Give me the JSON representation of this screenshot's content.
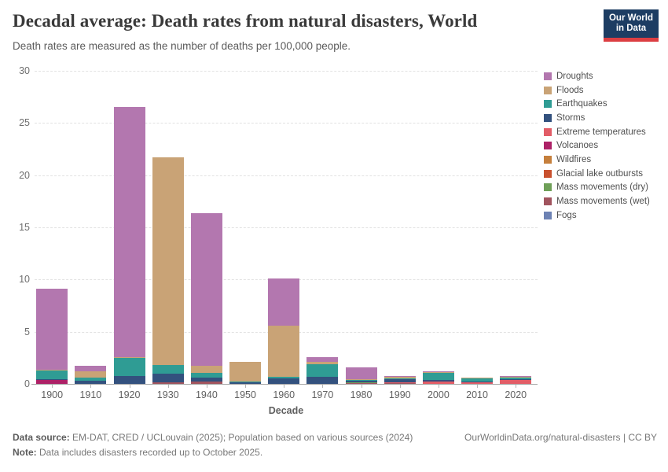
{
  "header": {
    "title": "Decadal average: Death rates from natural disasters, World",
    "subtitle": "Death rates are measured as the number of deaths per 100,000 people.",
    "logo": {
      "line1": "Our World",
      "line2": "in Data",
      "bg_color": "#1d3d63",
      "accent_color": "#dc3e42"
    }
  },
  "chart_data": {
    "type": "bar",
    "stacked": true,
    "title": "Decadal average: Death rates from natural disasters, World",
    "xlabel": "Decade",
    "ylabel": "",
    "ylim": [
      0,
      30
    ],
    "yticks": [
      0,
      5,
      10,
      15,
      20,
      25,
      30
    ],
    "grid": "dashed-horizontal",
    "legend_position": "right",
    "stacking_note": "bars stack bottom-to-top in reverse legend order",
    "categories": [
      "1900",
      "1910",
      "1920",
      "1930",
      "1940",
      "1950",
      "1960",
      "1970",
      "1980",
      "1990",
      "2000",
      "2010",
      "2020"
    ],
    "series": [
      {
        "name": "Droughts",
        "color": "#b377af",
        "values": [
          7.8,
          0.55,
          23.9,
          0,
          14.6,
          0,
          4.5,
          0.5,
          1.1,
          0.08,
          0.02,
          0,
          0.02
        ]
      },
      {
        "name": "Floods",
        "color": "#c9a376",
        "values": [
          0.05,
          0.55,
          0.05,
          19.9,
          0.68,
          1.9,
          4.9,
          0.25,
          0.05,
          0.15,
          0.06,
          0.05,
          0.07
        ]
      },
      {
        "name": "Earthquakes",
        "color": "#2f9c94",
        "values": [
          0.83,
          0.32,
          1.8,
          0.8,
          0.45,
          0.1,
          0.15,
          1.2,
          0.1,
          0.1,
          0.68,
          0.3,
          0.12
        ]
      },
      {
        "name": "Storms",
        "color": "#33517e",
        "values": [
          0.05,
          0.3,
          0.72,
          0.85,
          0.45,
          0.12,
          0.55,
          0.65,
          0.15,
          0.3,
          0.15,
          0.07,
          0.05
        ]
      },
      {
        "name": "Extreme temperatures",
        "color": "#e25d67",
        "values": [
          0,
          0,
          0,
          0,
          0,
          0,
          0,
          0,
          0,
          0.05,
          0.22,
          0.13,
          0.37
        ]
      },
      {
        "name": "Volcanoes",
        "color": "#ad2167",
        "values": [
          0.36,
          0,
          0,
          0,
          0,
          0,
          0,
          0,
          0,
          0,
          0,
          0,
          0
        ]
      },
      {
        "name": "Wildfires",
        "color": "#c57f3c",
        "values": [
          0,
          0,
          0,
          0,
          0,
          0,
          0,
          0,
          0,
          0,
          0,
          0,
          0
        ]
      },
      {
        "name": "Glacial lake outbursts",
        "color": "#c9512e",
        "values": [
          0,
          0,
          0,
          0,
          0,
          0,
          0,
          0,
          0,
          0,
          0,
          0,
          0
        ]
      },
      {
        "name": "Mass movements (dry)",
        "color": "#6fa058",
        "values": [
          0,
          0,
          0,
          0,
          0,
          0,
          0,
          0,
          0.05,
          0,
          0,
          0,
          0
        ]
      },
      {
        "name": "Mass movements (wet)",
        "color": "#a1545e",
        "values": [
          0,
          0,
          0,
          0.15,
          0.19,
          0,
          0,
          0,
          0.08,
          0.04,
          0,
          0,
          0
        ]
      },
      {
        "name": "Fogs",
        "color": "#6d82b4",
        "values": [
          0,
          0,
          0,
          0,
          0,
          0,
          0,
          0,
          0,
          0,
          0,
          0,
          0
        ]
      }
    ]
  },
  "footer": {
    "source_label": "Data source:",
    "source_text": " EM-DAT, CRED / UCLouvain (2025); Population based on various sources (2024)",
    "link": "OurWorldinData.org/natural-disasters | CC BY",
    "note_label": "Note:",
    "note_text": " Data includes disasters recorded up to October 2025."
  }
}
